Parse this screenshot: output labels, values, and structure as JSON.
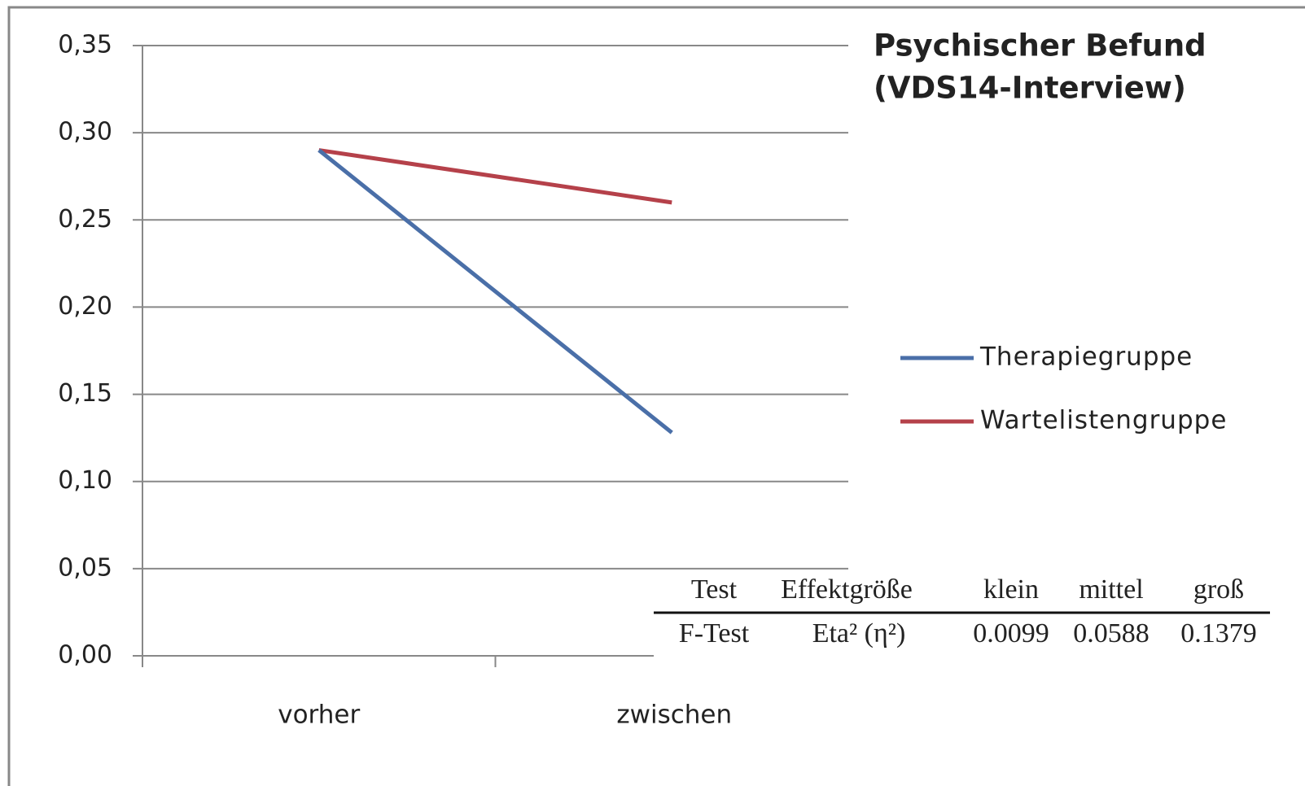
{
  "chart_data": {
    "type": "line",
    "title": [
      "Psychischer Befund",
      "(VDS14-Interview)"
    ],
    "categories": [
      "vorher",
      "zwischen"
    ],
    "series": [
      {
        "name": "Therapiegruppe",
        "color": "#4a6fa8",
        "values": [
          0.29,
          0.128
        ]
      },
      {
        "name": "Wartelistengruppe",
        "color": "#b5414a",
        "values": [
          0.29,
          0.26
        ]
      }
    ],
    "ylim": [
      0,
      0.35
    ],
    "yticks": [
      {
        "value": 0,
        "label": "0,00"
      },
      {
        "value": 0.05,
        "label": "0,05"
      },
      {
        "value": 0.1,
        "label": "0,10"
      },
      {
        "value": 0.15,
        "label": "0,15"
      },
      {
        "value": 0.2,
        "label": "0,20"
      },
      {
        "value": 0.25,
        "label": "0,25"
      },
      {
        "value": 0.3,
        "label": "0,30"
      },
      {
        "value": 0.35,
        "label": "0,35"
      }
    ],
    "grid": true
  },
  "table": {
    "header": [
      "Test",
      "Effektgröße",
      "klein",
      "mittel",
      "groß"
    ],
    "rows": [
      [
        "F-Test",
        "Eta² (η²)",
        "0.0099",
        "0.0588",
        "0.1379"
      ]
    ]
  }
}
